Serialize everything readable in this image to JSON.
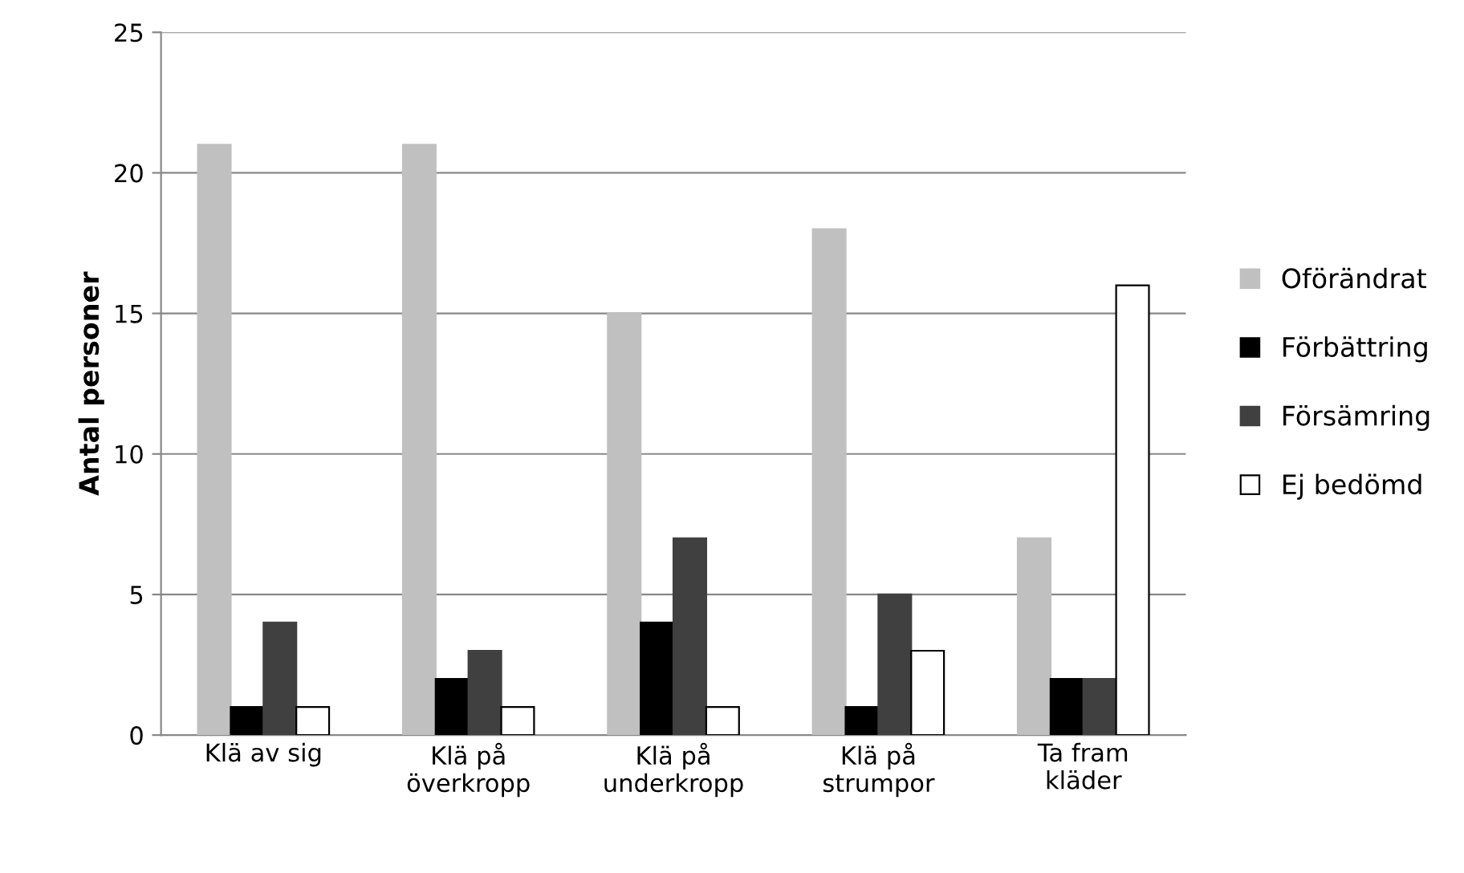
{
  "chart_data": {
    "type": "bar",
    "ylabel": "Antal personer",
    "categories": [
      "Klä av sig",
      "Klä på\növerkropp",
      "Klä på\nunderkropp",
      "Klä på\nstrumpor",
      "Ta fram\nkläder"
    ],
    "series": [
      {
        "name": "Oförändrat",
        "color": "#c0c0c0",
        "values": [
          21,
          21,
          15,
          18,
          7
        ]
      },
      {
        "name": "Förbättring",
        "color": "#000000",
        "values": [
          1,
          2,
          4,
          1,
          2
        ]
      },
      {
        "name": "Försämring",
        "color": "#404040",
        "values": [
          4,
          3,
          7,
          5,
          2
        ]
      },
      {
        "name": "Ej bedömd",
        "color": "#ffffff",
        "values": [
          1,
          1,
          1,
          3,
          16
        ]
      }
    ],
    "ylim": [
      0,
      25
    ],
    "yticks": [
      0,
      5,
      10,
      15,
      20,
      25
    ],
    "grid": "y",
    "legend": "right"
  }
}
